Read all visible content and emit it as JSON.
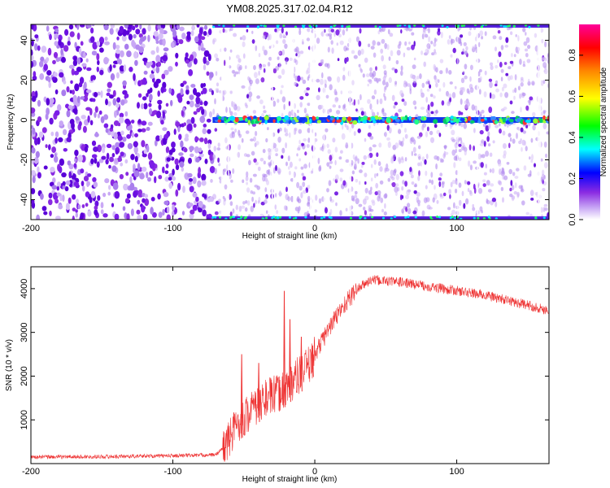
{
  "title": "YM08.2025.317.02.04.R12",
  "chart_data": [
    {
      "type": "heatmap",
      "xlabel": "Height of straight line (km)",
      "ylabel": "Frequency (Hz)",
      "xlim": [
        -200,
        165
      ],
      "ylim": [
        -50,
        48
      ],
      "xticks": [
        -200,
        -100,
        0,
        100
      ],
      "xtick_labels": [
        "-200",
        "-100",
        "0",
        "100"
      ],
      "yticks": [
        -40,
        -20,
        0,
        20,
        40
      ],
      "ytick_labels": [
        "-40",
        "-20",
        "0",
        "20",
        "40"
      ],
      "signal_onset_km": -72,
      "signal_band_hz": 0,
      "colorbar": {
        "label": "Normalized spectral amplitude",
        "range": [
          0,
          0.95
        ],
        "ticks": [
          0,
          0.2,
          0.4,
          0.6,
          0.8
        ],
        "tick_labels": [
          "0.0",
          "0.2",
          "0.4",
          "0.6",
          "0.8"
        ],
        "colors": [
          "#ffffff",
          "#8a2be2",
          "#0000ff",
          "#00ffff",
          "#00ff00",
          "#ffff00",
          "#ff0000",
          "#ff00ff"
        ]
      }
    },
    {
      "type": "line",
      "xlabel": "Height of straight line (km)",
      "ylabel": "SNR (10 * v/v)",
      "xlim": [
        -200,
        165
      ],
      "ylim": [
        0,
        4500
      ],
      "xticks": [
        -200,
        -100,
        0,
        100
      ],
      "xtick_labels": [
        "-200",
        "-100",
        "0",
        "100"
      ],
      "yticks": [
        1000,
        2000,
        3000,
        4000
      ],
      "ytick_labels": [
        "1000",
        "2000",
        "3000",
        "4000"
      ],
      "color": "#ee3333",
      "x": [
        -200,
        -150,
        -100,
        -70,
        -63,
        -55,
        -45,
        -35,
        -25,
        -15,
        -5,
        0,
        10,
        20,
        30,
        40,
        60,
        80,
        100,
        120,
        140,
        165
      ],
      "y": [
        150,
        160,
        180,
        200,
        400,
        900,
        1200,
        1500,
        1600,
        1900,
        2200,
        2500,
        3100,
        3600,
        4000,
        4200,
        4150,
        4050,
        3950,
        3850,
        3700,
        3500
      ]
    }
  ]
}
